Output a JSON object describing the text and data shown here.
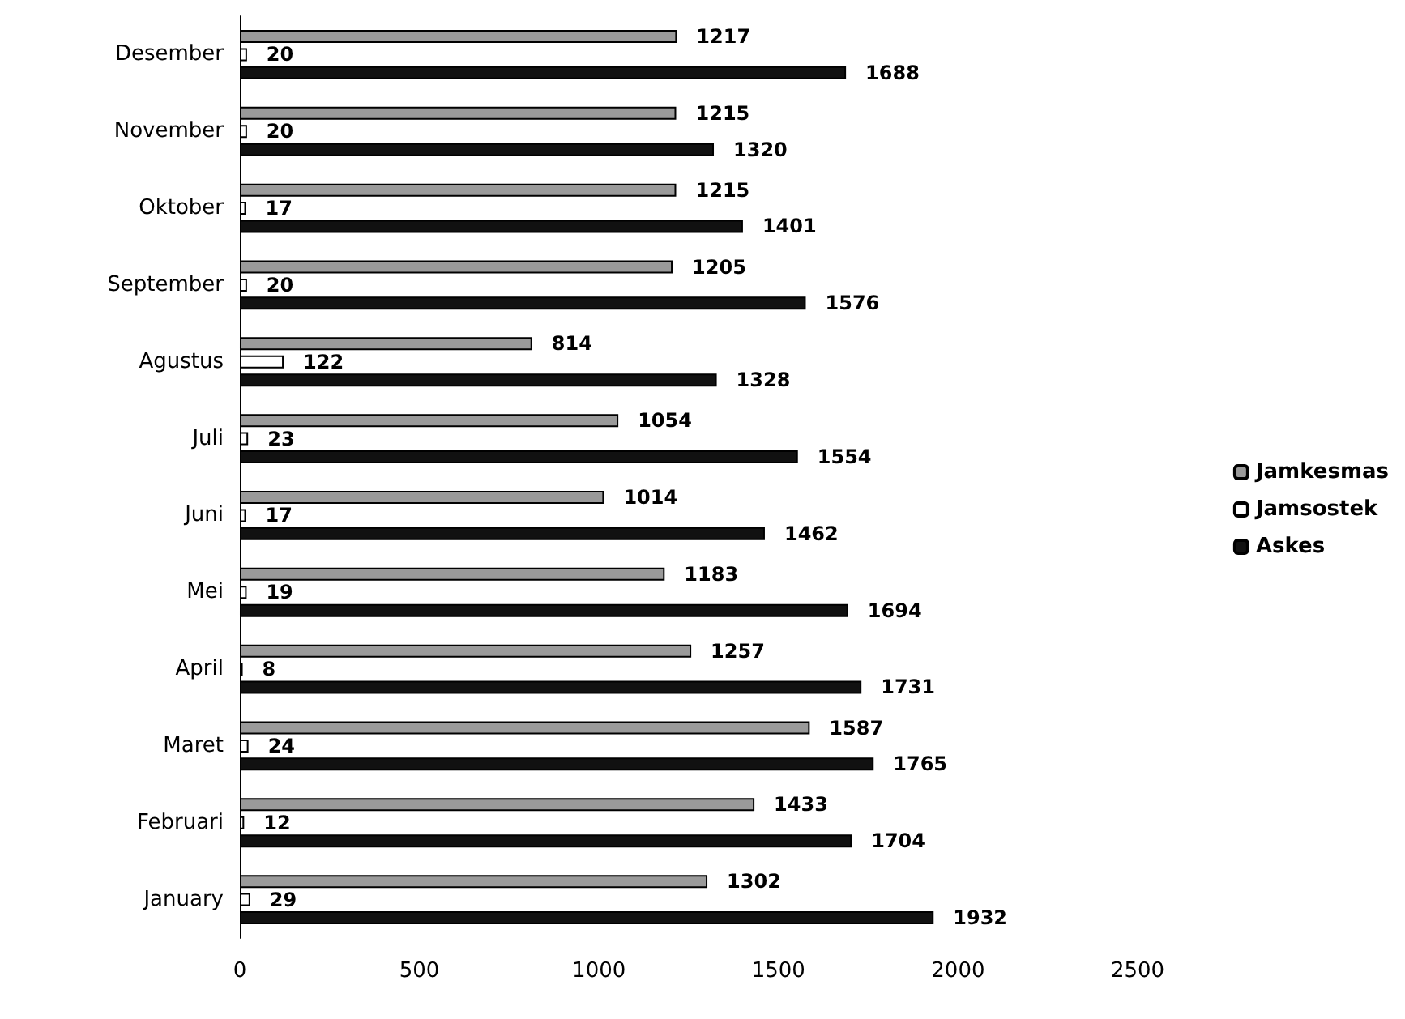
{
  "chart_data": {
    "type": "bar",
    "orientation": "horizontal",
    "categories": [
      "Desember",
      "November",
      "Oktober",
      "September",
      "Agustus",
      "Juli",
      "Juni",
      "Mei",
      "April",
      "Maret",
      "Februari",
      "January"
    ],
    "series": [
      {
        "name": "Jamkesmas",
        "color": "#9a9a9a",
        "values": [
          1217,
          1215,
          1215,
          1205,
          814,
          1054,
          1014,
          1183,
          1257,
          1587,
          1433,
          1302
        ]
      },
      {
        "name": "Jamsostek",
        "color": "#ffffff",
        "values": [
          20,
          20,
          17,
          20,
          122,
          23,
          17,
          19,
          8,
          24,
          12,
          29
        ]
      },
      {
        "name": "Askes",
        "color": "#111111",
        "values": [
          1688,
          1320,
          1401,
          1576,
          1328,
          1554,
          1462,
          1694,
          1731,
          1765,
          1704,
          1932
        ]
      }
    ],
    "xlim": [
      0,
      2500
    ],
    "xticks": [
      0,
      500,
      1000,
      1500,
      2000,
      2500
    ],
    "data_labels": true,
    "legend": "right",
    "grid": false
  }
}
